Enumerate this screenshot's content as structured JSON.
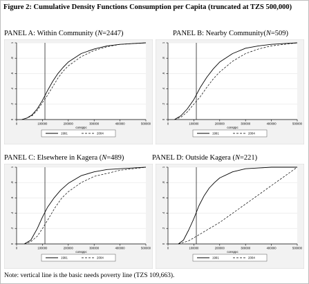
{
  "figure": {
    "title": "Figure 2: Cumulative Density Functions Consumption per Capita (truncated at TZS 500,000)",
    "note": "Note: vertical line is the basic needs poverty line (TZS 109,663)."
  },
  "chart_data": [
    {
      "type": "line",
      "panel_label": "PANEL A: Within Community (",
      "n_label": "N",
      "n_value": "=2447)",
      "xlabel": "consppc",
      "xlim": [
        0,
        500000
      ],
      "ylim": [
        0,
        1
      ],
      "xticks": [
        "0",
        "100000",
        "200000",
        "300000",
        "400000",
        "500000"
      ],
      "yticks": [
        "0",
        ".2",
        ".4",
        ".6",
        ".8",
        "1"
      ],
      "vline": 109663,
      "legend": [
        "1991",
        "2004"
      ],
      "series": [
        {
          "name": "1991",
          "style": "solid",
          "points": [
            [
              20000,
              0
            ],
            [
              40000,
              0.02
            ],
            [
              60000,
              0.06
            ],
            [
              80000,
              0.14
            ],
            [
              100000,
              0.25
            ],
            [
              120000,
              0.38
            ],
            [
              140000,
              0.5
            ],
            [
              160000,
              0.6
            ],
            [
              180000,
              0.68
            ],
            [
              200000,
              0.75
            ],
            [
              250000,
              0.86
            ],
            [
              300000,
              0.92
            ],
            [
              350000,
              0.96
            ],
            [
              400000,
              0.98
            ],
            [
              450000,
              0.99
            ],
            [
              500000,
              1
            ]
          ]
        },
        {
          "name": "2004",
          "style": "dashed",
          "points": [
            [
              20000,
              0
            ],
            [
              40000,
              0.02
            ],
            [
              60000,
              0.05
            ],
            [
              80000,
              0.12
            ],
            [
              100000,
              0.22
            ],
            [
              120000,
              0.32
            ],
            [
              140000,
              0.43
            ],
            [
              160000,
              0.54
            ],
            [
              180000,
              0.63
            ],
            [
              200000,
              0.7
            ],
            [
              250000,
              0.82
            ],
            [
              300000,
              0.9
            ],
            [
              350000,
              0.95
            ],
            [
              400000,
              0.98
            ],
            [
              450000,
              0.99
            ],
            [
              500000,
              1
            ]
          ]
        }
      ]
    },
    {
      "type": "line",
      "panel_label": "PANEL B: Nearby Community(",
      "n_label": "N",
      "n_value": "=509)",
      "xlabel": "consppc",
      "xlim": [
        0,
        500000
      ],
      "ylim": [
        0,
        1
      ],
      "xticks": [
        "0",
        "100000",
        "200000",
        "300000",
        "400000",
        "500000"
      ],
      "yticks": [
        "0",
        ".2",
        ".4",
        ".6",
        ".8",
        "1"
      ],
      "vline": 109663,
      "legend": [
        "1991",
        "2004"
      ],
      "series": [
        {
          "name": "1991",
          "style": "solid",
          "points": [
            [
              25000,
              0
            ],
            [
              50000,
              0.05
            ],
            [
              75000,
              0.14
            ],
            [
              100000,
              0.26
            ],
            [
              125000,
              0.42
            ],
            [
              150000,
              0.55
            ],
            [
              175000,
              0.66
            ],
            [
              200000,
              0.75
            ],
            [
              250000,
              0.86
            ],
            [
              300000,
              0.93
            ],
            [
              350000,
              0.96
            ],
            [
              400000,
              0.98
            ],
            [
              450000,
              0.99
            ],
            [
              500000,
              1
            ]
          ]
        },
        {
          "name": "2004",
          "style": "dashed",
          "points": [
            [
              25000,
              0
            ],
            [
              50000,
              0.03
            ],
            [
              75000,
              0.1
            ],
            [
              100000,
              0.2
            ],
            [
              125000,
              0.3
            ],
            [
              150000,
              0.42
            ],
            [
              175000,
              0.53
            ],
            [
              200000,
              0.62
            ],
            [
              250000,
              0.76
            ],
            [
              300000,
              0.86
            ],
            [
              350000,
              0.92
            ],
            [
              400000,
              0.96
            ],
            [
              450000,
              0.98
            ],
            [
              500000,
              1
            ]
          ]
        }
      ]
    },
    {
      "type": "line",
      "panel_label": "PANEL C: Elsewhere in Kagera (",
      "n_label": "N",
      "n_value": "=489)",
      "xlabel": "consppc",
      "xlim": [
        0,
        500000
      ],
      "ylim": [
        0,
        1
      ],
      "xticks": [
        "0",
        "100000",
        "200000",
        "300000",
        "400000",
        "500000"
      ],
      "yticks": [
        "0",
        ".2",
        ".4",
        ".6",
        ".8",
        "1"
      ],
      "vline": 109663,
      "legend": [
        "1991",
        "2004"
      ],
      "series": [
        {
          "name": "1991",
          "style": "solid",
          "points": [
            [
              30000,
              0
            ],
            [
              55000,
              0.05
            ],
            [
              80000,
              0.2
            ],
            [
              100000,
              0.35
            ],
            [
              120000,
              0.48
            ],
            [
              145000,
              0.6
            ],
            [
              170000,
              0.7
            ],
            [
              200000,
              0.79
            ],
            [
              250000,
              0.89
            ],
            [
              300000,
              0.94
            ],
            [
              350000,
              0.97
            ],
            [
              400000,
              0.98
            ],
            [
              450000,
              0.99
            ],
            [
              500000,
              1
            ]
          ]
        },
        {
          "name": "2004",
          "style": "dashed",
          "points": [
            [
              30000,
              0
            ],
            [
              55000,
              0.03
            ],
            [
              80000,
              0.1
            ],
            [
              100000,
              0.2
            ],
            [
              125000,
              0.34
            ],
            [
              150000,
              0.48
            ],
            [
              175000,
              0.6
            ],
            [
              200000,
              0.68
            ],
            [
              250000,
              0.8
            ],
            [
              300000,
              0.88
            ],
            [
              350000,
              0.92
            ],
            [
              400000,
              0.96
            ],
            [
              450000,
              0.98
            ],
            [
              500000,
              1
            ]
          ]
        }
      ]
    },
    {
      "type": "line",
      "panel_label": "PANEL D: Outside Kagera (",
      "n_label": "N",
      "n_value": "=221)",
      "xlabel": "consppc",
      "xlim": [
        0,
        500000
      ],
      "ylim": [
        0,
        1
      ],
      "xticks": [
        "0",
        "100000",
        "200000",
        "300000",
        "400000",
        "500000"
      ],
      "yticks": [
        "0",
        ".2",
        ".4",
        ".6",
        ".8",
        "1"
      ],
      "vline": 109663,
      "legend": [
        "1991",
        "2004"
      ],
      "series": [
        {
          "name": "1991",
          "style": "solid",
          "points": [
            [
              40000,
              0
            ],
            [
              60000,
              0.05
            ],
            [
              80000,
              0.18
            ],
            [
              100000,
              0.33
            ],
            [
              120000,
              0.5
            ],
            [
              140000,
              0.63
            ],
            [
              160000,
              0.73
            ],
            [
              180000,
              0.8
            ],
            [
              200000,
              0.86
            ],
            [
              250000,
              0.94
            ],
            [
              300000,
              0.98
            ],
            [
              350000,
              0.99
            ],
            [
              400000,
              1
            ],
            [
              500000,
              1
            ]
          ]
        },
        {
          "name": "2004",
          "style": "dashed",
          "points": [
            [
              40000,
              0
            ],
            [
              80000,
              0.04
            ],
            [
              120000,
              0.12
            ],
            [
              160000,
              0.2
            ],
            [
              200000,
              0.28
            ],
            [
              250000,
              0.4
            ],
            [
              300000,
              0.52
            ],
            [
              350000,
              0.64
            ],
            [
              400000,
              0.76
            ],
            [
              450000,
              0.88
            ],
            [
              500000,
              1
            ]
          ]
        }
      ]
    }
  ]
}
